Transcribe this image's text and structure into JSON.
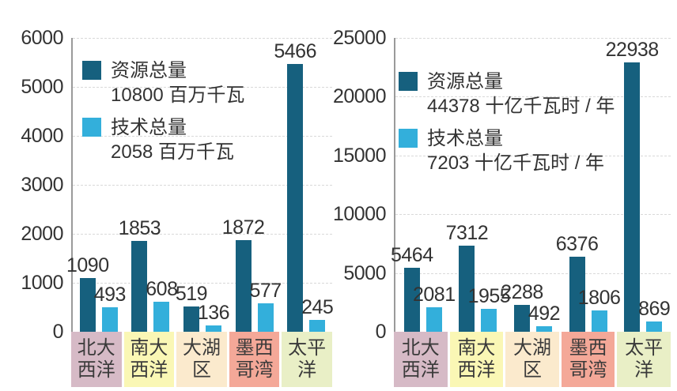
{
  "figure": {
    "description_left_unit": "百万千瓦",
    "description_right_unit": "十亿千瓦时 / 年"
  },
  "chart_data": [
    {
      "type": "bar",
      "title": "",
      "xlabel": "",
      "ylabel": "",
      "ylim": [
        0,
        6000
      ],
      "grid": true,
      "legend_position": "top-left-inside",
      "yticks": [
        0,
        1000,
        2000,
        3000,
        4000,
        5000,
        6000
      ],
      "categories": [
        {
          "label": "北大\n西洋",
          "bg": "#D6BAC6"
        },
        {
          "label": "南大\n西洋",
          "bg": "#FAF7B5"
        },
        {
          "label": "大湖\n区",
          "bg": "#FBEACD"
        },
        {
          "label": "墨西\n哥湾",
          "bg": "#F4A898"
        },
        {
          "label": "太平洋",
          "bg": "#E9EFC6"
        }
      ],
      "series": [
        {
          "name": "资源总量",
          "total_label": "10800 百万千瓦",
          "color": "#16607E",
          "values": [
            1090,
            1853,
            519,
            1872,
            5466
          ]
        },
        {
          "name": "技术总量",
          "total_label": "2058 百万千瓦",
          "color": "#33AFDB",
          "values": [
            493,
            608,
            136,
            577,
            245
          ]
        }
      ]
    },
    {
      "type": "bar",
      "title": "",
      "xlabel": "",
      "ylabel": "",
      "ylim": [
        0,
        25000
      ],
      "grid": true,
      "legend_position": "top-left-inside",
      "yticks": [
        0,
        5000,
        10000,
        15000,
        20000,
        25000
      ],
      "categories": [
        {
          "label": "北大\n西洋",
          "bg": "#D6BAC6"
        },
        {
          "label": "南大\n西洋",
          "bg": "#FAF7B5"
        },
        {
          "label": "大湖\n区",
          "bg": "#FBEACD"
        },
        {
          "label": "墨西\n哥湾",
          "bg": "#F4A898"
        },
        {
          "label": "太平洋",
          "bg": "#E9EFC6"
        }
      ],
      "series": [
        {
          "name": "资源总量",
          "total_label": "44378 十亿千瓦时 / 年",
          "color": "#16607E",
          "values": [
            5464,
            7312,
            2288,
            6376,
            22938
          ]
        },
        {
          "name": "技术总量",
          "total_label": "7203 十亿千瓦时 / 年",
          "color": "#33AFDB",
          "values": [
            2081,
            1955,
            492,
            1806,
            869
          ]
        }
      ]
    }
  ]
}
